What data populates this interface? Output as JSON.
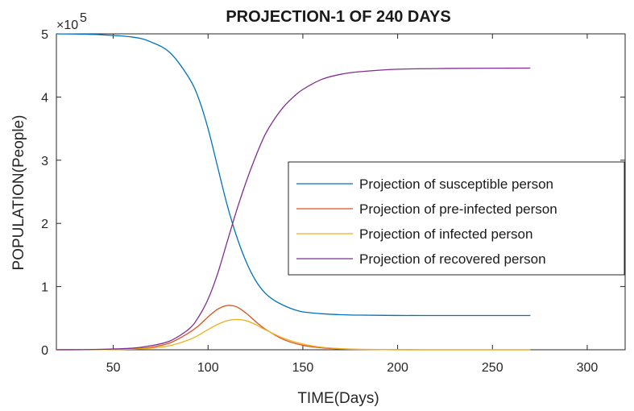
{
  "chart_data": {
    "type": "line",
    "title": "PROJECTION-1 OF 240 DAYS",
    "xlabel": "TIME(Days)",
    "ylabel": "POPULATION(People)",
    "y_multiplier": "×10",
    "y_exponent": "5",
    "xlim": [
      20,
      320
    ],
    "ylim": [
      0,
      500000
    ],
    "xticks": [
      "50",
      "100",
      "150",
      "200",
      "250",
      "300"
    ],
    "yticks": [
      "0",
      "1",
      "2",
      "3",
      "4",
      "5"
    ],
    "legend_position": "right-center",
    "grid": false,
    "series": [
      {
        "name": "Projection of susceptible person",
        "color": "#0072BD",
        "x": [
          20,
          40,
          60,
          70,
          80,
          90,
          95,
          100,
          105,
          110,
          115,
          120,
          125,
          130,
          135,
          140,
          145,
          150,
          160,
          170,
          180,
          200,
          220,
          240,
          270
        ],
        "y": [
          500000,
          499000,
          495000,
          487000,
          470000,
          430000,
          398000,
          350000,
          290000,
          230000,
          180000,
          140000,
          110000,
          90000,
          78000,
          70000,
          64000,
          60000,
          57000,
          55500,
          54800,
          54300,
          54200,
          54200,
          54200
        ]
      },
      {
        "name": "Projection of pre-infected person",
        "color": "#D95319",
        "x": [
          20,
          50,
          60,
          70,
          80,
          90,
          95,
          100,
          105,
          110,
          115,
          120,
          125,
          130,
          140,
          150,
          160,
          170,
          180,
          200,
          220,
          240,
          270
        ],
        "y": [
          0,
          500,
          1500,
          4000,
          11000,
          27000,
          38000,
          52000,
          64000,
          70000,
          68000,
          58000,
          45000,
          33000,
          16000,
          7000,
          3000,
          1200,
          500,
          100,
          0,
          0,
          0
        ]
      },
      {
        "name": "Projection of infected person",
        "color": "#EDB120",
        "x": [
          20,
          50,
          60,
          70,
          80,
          90,
          95,
          100,
          105,
          110,
          115,
          120,
          125,
          130,
          140,
          150,
          160,
          170,
          180,
          200,
          220,
          240,
          270
        ],
        "y": [
          0,
          300,
          900,
          2500,
          6500,
          16000,
          23000,
          32000,
          40000,
          46000,
          48000,
          46000,
          40000,
          32000,
          18000,
          9000,
          4000,
          1800,
          700,
          100,
          0,
          0,
          0
        ]
      },
      {
        "name": "Projection of recovered person",
        "color": "#7E2F8E",
        "x": [
          20,
          40,
          60,
          70,
          80,
          90,
          95,
          100,
          105,
          110,
          115,
          120,
          125,
          130,
          135,
          140,
          145,
          150,
          160,
          170,
          180,
          200,
          220,
          240,
          270
        ],
        "y": [
          0,
          500,
          2500,
          6500,
          14000,
          33000,
          52000,
          80000,
          120000,
          170000,
          220000,
          265000,
          305000,
          340000,
          365000,
          385000,
          400000,
          412000,
          428000,
          436000,
          440000,
          444000,
          445000,
          445500,
          445800
        ]
      }
    ]
  }
}
